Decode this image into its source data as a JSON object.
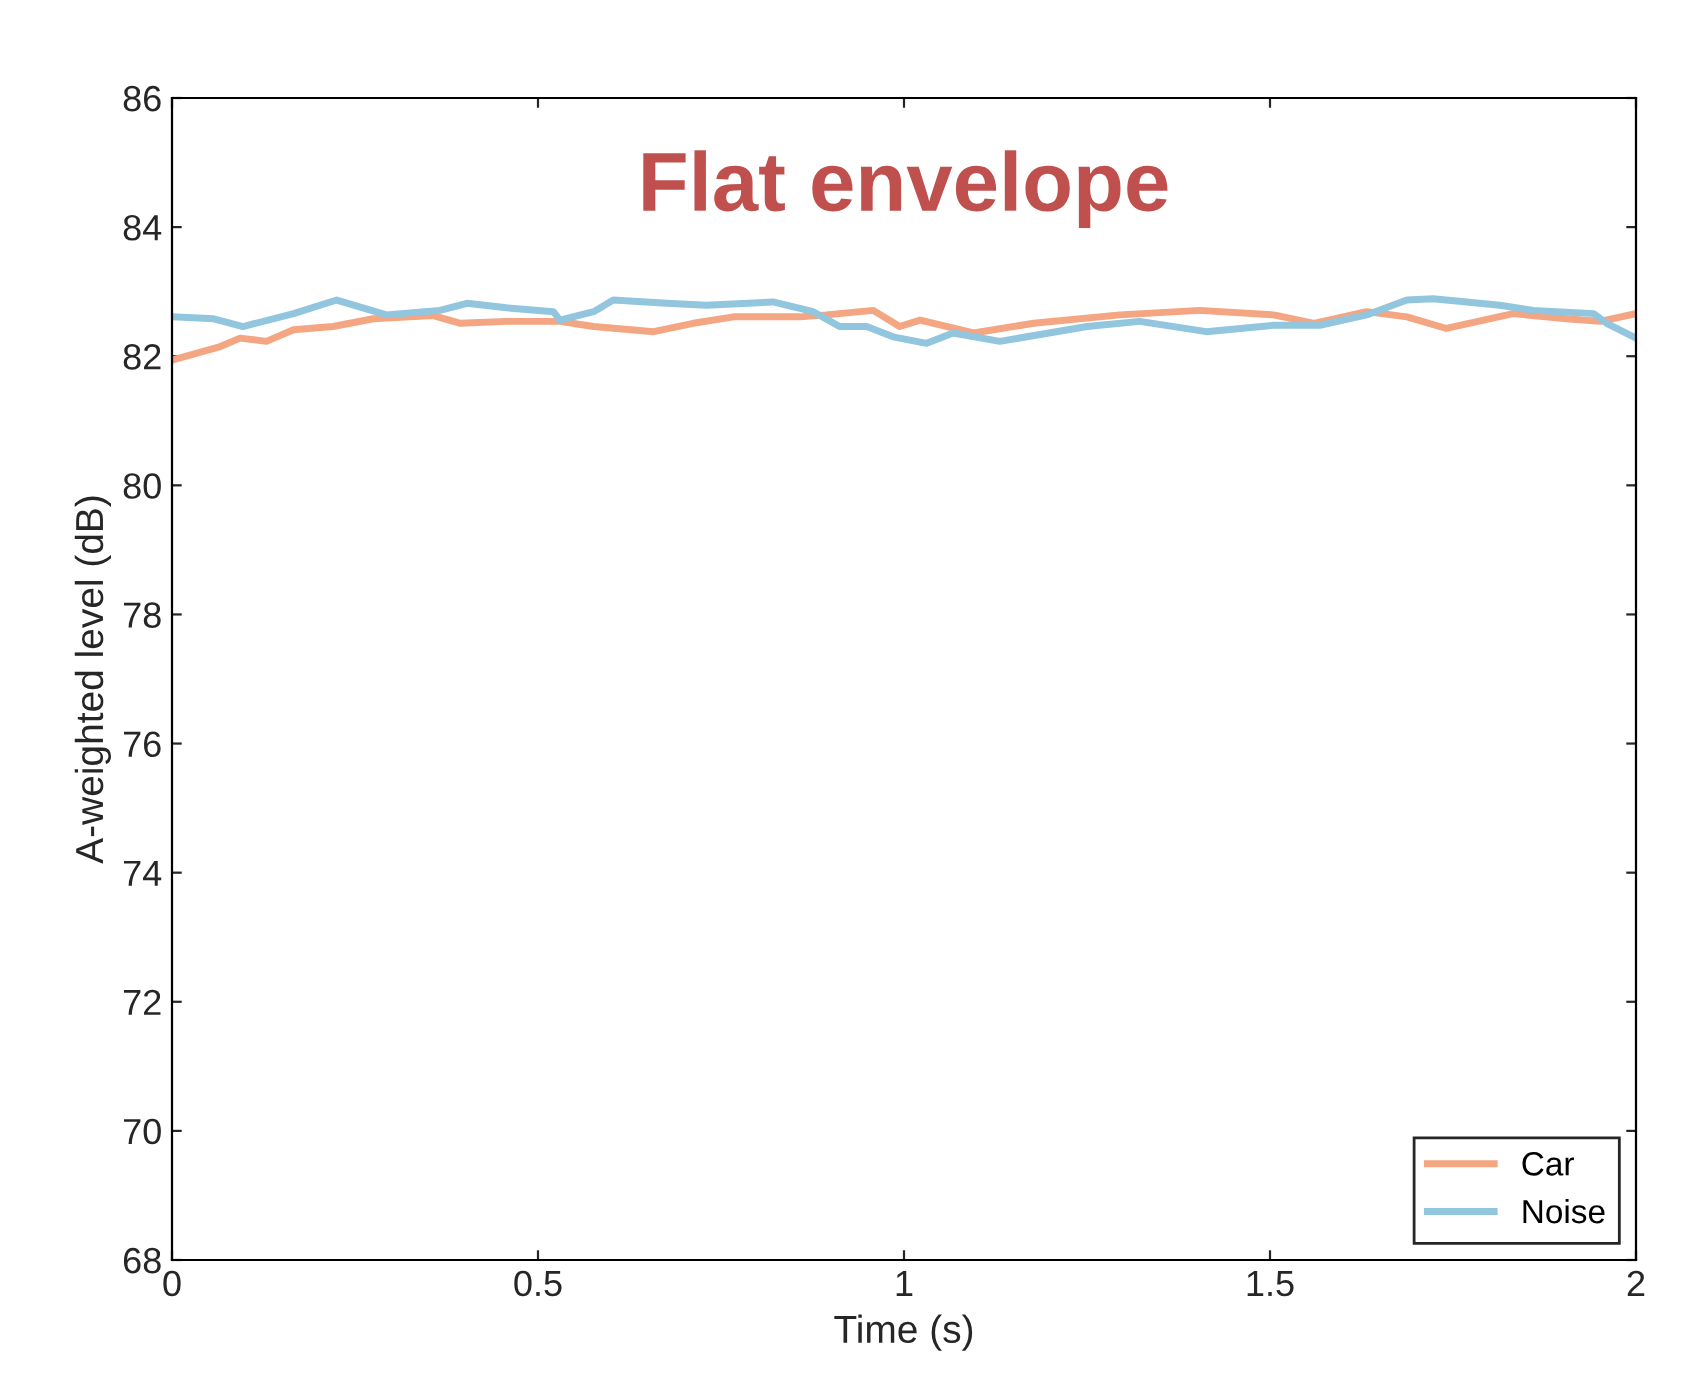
{
  "chart_data": {
    "type": "line",
    "title": "Flat envelope",
    "xlabel": "Time (s)",
    "ylabel": "A-weighted level (dB)",
    "xlim": [
      0,
      2
    ],
    "xticks": [
      0,
      0.5,
      1,
      1.5,
      2
    ],
    "ylim": [
      68,
      86
    ],
    "yticks": [
      68,
      70,
      72,
      74,
      76,
      78,
      80,
      82,
      84,
      86
    ],
    "grid": false,
    "legend": "bottom right",
    "series": [
      {
        "name": "Car",
        "color": "#f4a582",
        "x": [
          0,
          0.066,
          0.093,
          0.129,
          0.166,
          0.22,
          0.275,
          0.357,
          0.394,
          0.457,
          0.53,
          0.576,
          0.658,
          0.712,
          0.767,
          0.858,
          0.894,
          0.958,
          0.994,
          1.022,
          1.095,
          1.177,
          1.295,
          1.404,
          1.505,
          1.56,
          1.632,
          1.687,
          1.741,
          1.832,
          1.905,
          1.951,
          2.0
        ],
        "values": [
          81.94,
          82.15,
          82.28,
          82.23,
          82.41,
          82.46,
          82.58,
          82.63,
          82.51,
          82.54,
          82.54,
          82.46,
          82.38,
          82.51,
          82.61,
          82.61,
          82.64,
          82.71,
          82.46,
          82.56,
          82.36,
          82.51,
          82.64,
          82.71,
          82.64,
          82.51,
          82.69,
          82.61,
          82.43,
          82.66,
          82.58,
          82.54,
          82.66
        ]
      },
      {
        "name": "Noise",
        "color": "#92c5de",
        "x": [
          0,
          0.057,
          0.097,
          0.166,
          0.225,
          0.293,
          0.366,
          0.403,
          0.457,
          0.521,
          0.53,
          0.576,
          0.603,
          0.676,
          0.73,
          0.821,
          0.876,
          0.912,
          0.949,
          0.985,
          1.031,
          1.067,
          1.131,
          1.25,
          1.322,
          1.413,
          1.505,
          1.568,
          1.632,
          1.687,
          1.723,
          1.814,
          1.86,
          1.942,
          1.96,
          2.0
        ],
        "values": [
          82.61,
          82.58,
          82.46,
          82.66,
          82.87,
          82.64,
          82.71,
          82.82,
          82.75,
          82.69,
          82.56,
          82.69,
          82.87,
          82.82,
          82.79,
          82.84,
          82.69,
          82.46,
          82.46,
          82.3,
          82.2,
          82.36,
          82.23,
          82.46,
          82.54,
          82.38,
          82.48,
          82.48,
          82.64,
          82.87,
          82.89,
          82.79,
          82.71,
          82.66,
          82.51,
          82.28
        ]
      }
    ]
  }
}
